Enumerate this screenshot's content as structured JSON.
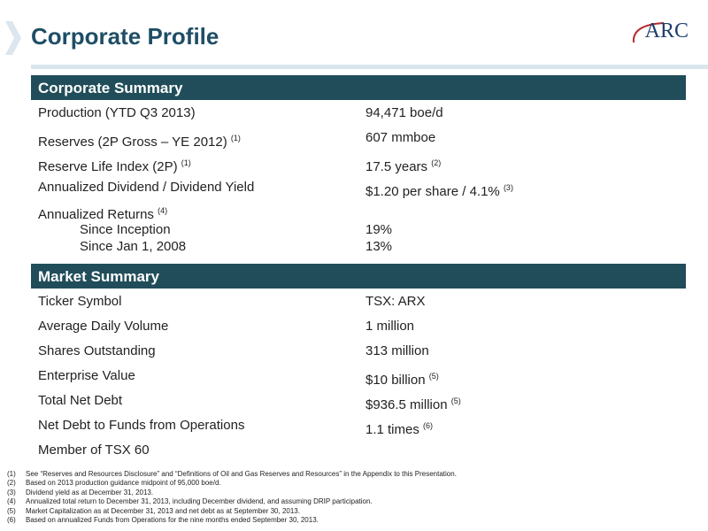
{
  "header": {
    "title": "Corporate Profile",
    "logo": "ARC"
  },
  "sections": [
    {
      "heading": "Corporate Summary",
      "rows": [
        {
          "label": "Production (YTD Q3 2013)",
          "value": "94,471 boe/d"
        },
        {
          "label": "Reserves (2P Gross – YE 2012)",
          "label_note": "(1)",
          "value": "607 mmboe"
        },
        {
          "label": "Reserve Life Index (2P)",
          "label_note": "(1)",
          "value": "17.5 years",
          "value_note": "(2)"
        },
        {
          "label": "Annualized Dividend / Dividend Yield",
          "value": "$1.20 per share / 4.1%",
          "value_note": "(3)"
        },
        {
          "label": "Annualized Returns",
          "label_note": "(4)",
          "items": [
            {
              "label": "Since Inception",
              "value": "19%"
            },
            {
              "label": "Since Jan 1, 2008",
              "value": "13%"
            }
          ]
        }
      ]
    },
    {
      "heading": "Market Summary",
      "rows": [
        {
          "label": "Ticker Symbol",
          "value": "TSX: ARX"
        },
        {
          "label": "Average Daily Volume",
          "value": "1 million"
        },
        {
          "label": "Shares Outstanding",
          "value": "313 million"
        },
        {
          "label": "Enterprise Value",
          "value": "$10 billion",
          "value_note": "(5)"
        },
        {
          "label": "Total Net Debt",
          "value": "$936.5 million",
          "value_note": "(5)"
        },
        {
          "label": "Net Debt to Funds from Operations",
          "value": "1.1 times",
          "value_note": "(6)"
        },
        {
          "label": "Member of TSX 60"
        }
      ]
    }
  ],
  "footnotes": [
    {
      "marker": "(1)",
      "text": "See “Reserves and Resources Disclosure” and “Definitions of Oil and Gas Reserves and Resources” in the Appendix to this Presentation."
    },
    {
      "marker": "(2)",
      "text": "Based on 2013 production guidance midpoint of 95,000 boe/d."
    },
    {
      "marker": "(3)",
      "text": "Dividend yield  as at December 31, 2013."
    },
    {
      "marker": "(4)",
      "text": "Annualized total return to December 31, 2013,  including December dividend, and assuming DRIP participation."
    },
    {
      "marker": "(5)",
      "text": "Market Capitalization as at December 31, 2013 and net debt as at September 30, 2013."
    },
    {
      "marker": "(6)",
      "text": "Based on annualized Funds from Operations for the nine months ended September 30, 2013."
    }
  ]
}
